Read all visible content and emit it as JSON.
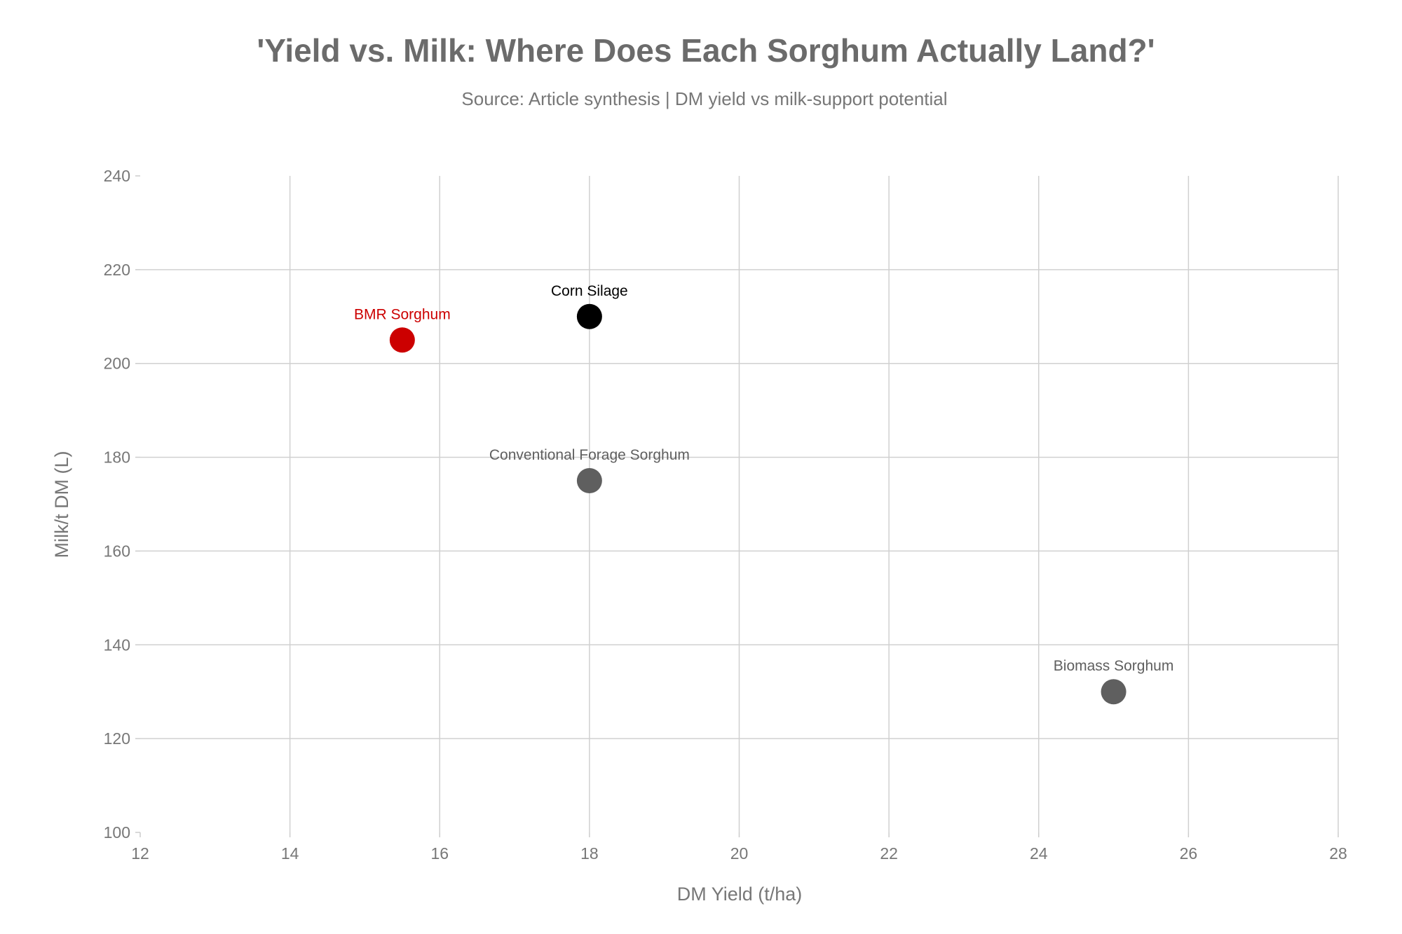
{
  "chart_data": {
    "type": "scatter",
    "title": "'Yield vs. Milk: Where Does Each Sorghum Actually Land?'",
    "subtitle": "Source: Article synthesis | DM yield vs milk-support potential",
    "xlabel": "DM Yield (t/ha)",
    "ylabel": "Milk/t DM (L)",
    "xlim": [
      12,
      28
    ],
    "ylim": [
      100,
      240
    ],
    "xticks": [
      12,
      14,
      16,
      18,
      20,
      22,
      24,
      26,
      28
    ],
    "yticks": [
      100,
      120,
      140,
      160,
      180,
      200,
      220,
      240
    ],
    "grid": true,
    "points": [
      {
        "label": "BMR Sorghum",
        "x": 15.5,
        "y": 205,
        "color": "#cc0000"
      },
      {
        "label": "Corn Silage",
        "x": 18,
        "y": 210,
        "color": "#000000"
      },
      {
        "label": "Conventional Forage Sorghum",
        "x": 18,
        "y": 175,
        "color": "#5f5f5f"
      },
      {
        "label": "Biomass Sorghum",
        "x": 25,
        "y": 130,
        "color": "#5f5f5f"
      }
    ]
  }
}
